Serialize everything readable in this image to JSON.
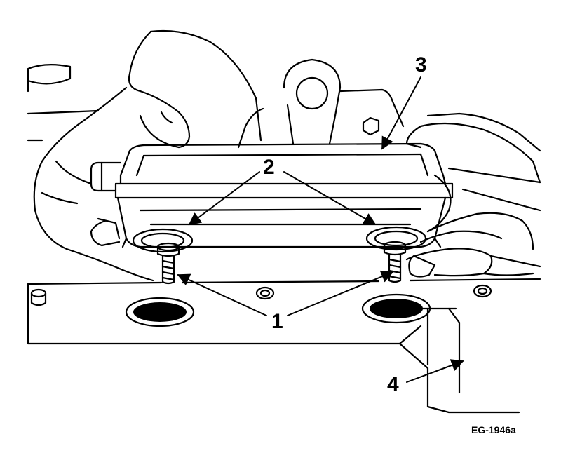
{
  "figure": {
    "code": "EG-1946a",
    "callouts": [
      {
        "id": "1",
        "label": "1"
      },
      {
        "id": "2",
        "label": "2"
      },
      {
        "id": "3",
        "label": "3"
      },
      {
        "id": "4",
        "label": "4"
      }
    ]
  }
}
